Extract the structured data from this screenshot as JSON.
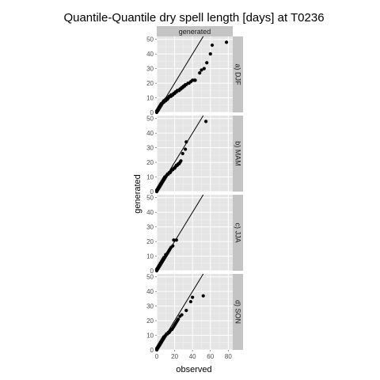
{
  "colors": {
    "panel_bg": "#e5e5e5",
    "grid_major": "#ffffff",
    "grid_minor": "#f2f2f2",
    "strip_bg": "#c4c4c4",
    "points": "#000000",
    "reference_line": "#000000"
  },
  "chart_data": {
    "type": "scatter",
    "title": "Quantile-Quantile dry spell length [days] at T0236",
    "xlabel": "observed",
    "ylabel": "generated",
    "column_strip": "generated",
    "xlim": [
      0,
      85
    ],
    "ylim": [
      0,
      52
    ],
    "x_ticks": [
      0,
      20,
      40,
      60,
      80
    ],
    "y_ticks": [
      0,
      10,
      20,
      30,
      40,
      50
    ],
    "reference_line": {
      "slope": 1,
      "intercept": 0
    },
    "grid": true,
    "panels": [
      {
        "label": "a) DJF",
        "x": [
          0,
          0,
          1,
          1,
          1,
          2,
          2,
          2,
          3,
          3,
          3,
          4,
          4,
          4,
          5,
          5,
          5,
          6,
          6,
          6,
          7,
          7,
          7,
          8,
          8,
          9,
          9,
          10,
          10,
          11,
          11,
          12,
          12,
          13,
          13,
          14,
          15,
          16,
          16,
          17,
          18,
          19,
          20,
          21,
          22,
          23,
          24,
          25,
          26,
          27,
          28,
          29,
          30,
          31,
          32,
          33,
          35,
          36,
          38,
          40,
          42,
          43,
          48,
          50,
          53,
          56,
          60,
          62,
          78
        ],
        "y": [
          0,
          1,
          1,
          1,
          2,
          2,
          2,
          3,
          3,
          3,
          4,
          4,
          4,
          5,
          5,
          5,
          6,
          6,
          6,
          6,
          7,
          7,
          7,
          7,
          8,
          8,
          8,
          8,
          9,
          9,
          9,
          9,
          10,
          10,
          10,
          11,
          11,
          11,
          12,
          12,
          12,
          13,
          13,
          14,
          14,
          15,
          15,
          15,
          16,
          16,
          17,
          17,
          18,
          18,
          19,
          19,
          20,
          20,
          21,
          22,
          22,
          22,
          27,
          29,
          30,
          34,
          40,
          46,
          48
        ]
      },
      {
        "label": "b) MAM",
        "x": [
          0,
          0,
          1,
          1,
          2,
          2,
          3,
          3,
          4,
          4,
          5,
          5,
          6,
          6,
          7,
          7,
          8,
          8,
          9,
          9,
          10,
          11,
          11,
          12,
          13,
          14,
          15,
          16,
          17,
          18,
          19,
          20,
          21,
          22,
          23,
          24,
          25,
          26,
          27,
          29,
          32,
          33,
          55
        ],
        "y": [
          0,
          1,
          1,
          2,
          2,
          3,
          3,
          4,
          4,
          5,
          5,
          6,
          6,
          7,
          7,
          8,
          8,
          9,
          9,
          10,
          10,
          11,
          11,
          12,
          12,
          13,
          13,
          14,
          15,
          15,
          16,
          16,
          17,
          18,
          18,
          19,
          19,
          20,
          21,
          26,
          29,
          34,
          48
        ]
      },
      {
        "label": "c) JJA",
        "x": [
          0,
          0,
          1,
          1,
          2,
          2,
          3,
          3,
          4,
          4,
          5,
          5,
          6,
          6,
          7,
          7,
          8,
          8,
          9,
          10,
          10,
          11,
          12,
          13,
          14,
          15,
          16,
          18,
          19,
          22
        ],
        "y": [
          0,
          1,
          1,
          2,
          2,
          3,
          3,
          4,
          4,
          5,
          5,
          6,
          6,
          7,
          7,
          8,
          8,
          9,
          9,
          10,
          11,
          11,
          12,
          13,
          14,
          15,
          16,
          17,
          21,
          21
        ]
      },
      {
        "label": "d) SON",
        "x": [
          0,
          0,
          1,
          1,
          2,
          2,
          3,
          3,
          4,
          4,
          5,
          5,
          6,
          6,
          7,
          7,
          8,
          8,
          9,
          10,
          10,
          11,
          12,
          13,
          14,
          15,
          16,
          17,
          18,
          19,
          20,
          21,
          22,
          23,
          24,
          26,
          28,
          33,
          38,
          40,
          52
        ],
        "y": [
          0,
          1,
          1,
          2,
          2,
          3,
          3,
          4,
          4,
          5,
          5,
          6,
          6,
          7,
          7,
          8,
          8,
          9,
          9,
          10,
          10,
          11,
          11,
          12,
          12,
          13,
          14,
          14,
          15,
          16,
          17,
          18,
          19,
          20,
          21,
          23,
          24,
          27,
          33,
          36,
          37
        ]
      }
    ]
  }
}
